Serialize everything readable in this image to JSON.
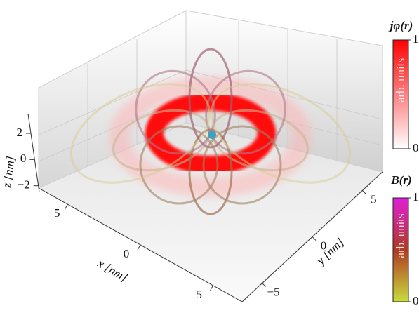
{
  "chart_data": {
    "type": "field3d",
    "xlabel": "x [nm]",
    "ylabel": "y [nm]",
    "zlabel": "z [nm]",
    "xlim": [
      -7,
      7
    ],
    "ylim": [
      -7,
      7
    ],
    "zlim": [
      -2.5,
      3.5
    ],
    "xticks": [
      {
        "value": -5,
        "label": "−5"
      },
      0,
      5
    ],
    "yticks": [
      {
        "value": -5,
        "label": "−5"
      },
      0,
      5
    ],
    "zticks": [
      {
        "value": -2,
        "label": "−2"
      },
      0,
      2
    ],
    "colorbars": [
      {
        "title": "jφ(r)",
        "units": "arb. units",
        "clim": [
          0,
          1
        ],
        "ticks": [
          0,
          1
        ],
        "colors": [
          "#ffffff",
          "#ff0000"
        ]
      },
      {
        "title": "B(r)",
        "units": "arb. units",
        "clim": [
          0,
          1
        ],
        "ticks": [
          0,
          1
        ],
        "colors": [
          "#c8dc3c",
          "#b03a22",
          "#e020d8"
        ]
      }
    ]
  }
}
